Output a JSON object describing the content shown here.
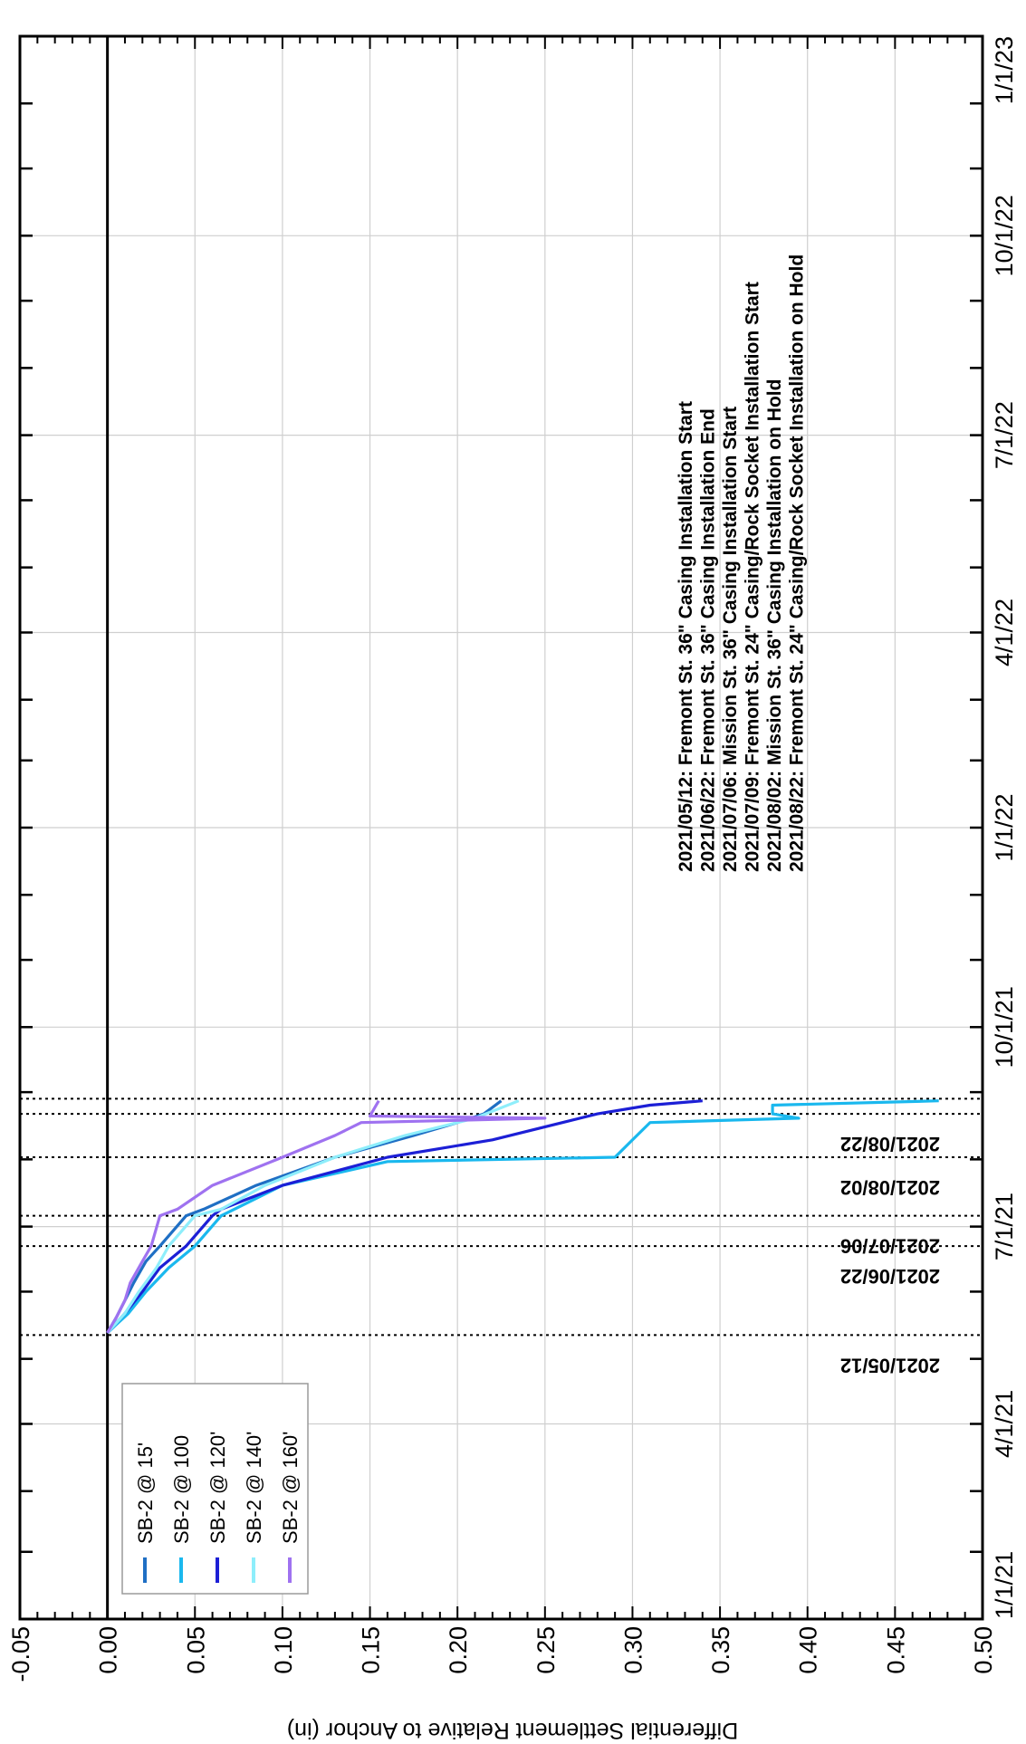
{
  "chart_data": {
    "type": "line",
    "title": "",
    "xlabel": "",
    "ylabel": "Differential Settlement Relative to Anchor (in)",
    "x_axis": {
      "type": "date",
      "range": [
        "2021-01-01",
        "2023-01-01"
      ],
      "tick_labels": [
        "1/1/21",
        "4/1/21",
        "7/1/21",
        "10/1/21",
        "1/1/22",
        "4/1/22",
        "7/1/22",
        "10/1/22",
        "1/1/23"
      ],
      "tick_dates": [
        "2021-01-01",
        "2021-04-01",
        "2021-07-01",
        "2021-10-01",
        "2022-01-01",
        "2022-04-01",
        "2022-07-01",
        "2022-10-01",
        "2023-01-01"
      ]
    },
    "y_axis": {
      "range": [
        -0.05,
        0.5
      ],
      "tick_labels": [
        "-0.05",
        "0.00",
        "0.05",
        "0.10",
        "0.15",
        "0.20",
        "0.25",
        "0.30",
        "0.35",
        "0.40",
        "0.45",
        "0.50"
      ],
      "tick_values": [
        -0.05,
        0.0,
        0.05,
        0.1,
        0.15,
        0.2,
        0.25,
        0.3,
        0.35,
        0.4,
        0.45,
        0.5
      ]
    },
    "grid": true,
    "orientation": "rotated-90-ccw",
    "legend_position": "bottom-left",
    "series": [
      {
        "name": "SB-2 @ 15'",
        "color": "#1f6fc4",
        "points": [
          [
            "2021-05-13",
            0.0
          ],
          [
            "2021-05-20",
            0.005
          ],
          [
            "2021-05-28",
            0.01
          ],
          [
            "2021-06-05",
            0.015
          ],
          [
            "2021-06-15",
            0.022
          ],
          [
            "2021-06-22",
            0.03
          ],
          [
            "2021-07-06",
            0.045
          ],
          [
            "2021-07-09",
            0.055
          ],
          [
            "2021-07-20",
            0.085
          ],
          [
            "2021-08-02",
            0.13
          ],
          [
            "2021-08-12",
            0.175
          ],
          [
            "2021-08-18",
            0.2
          ],
          [
            "2021-08-22",
            0.215
          ],
          [
            "2021-08-28",
            0.225
          ]
        ]
      },
      {
        "name": "SB-2 @ 100",
        "color": "#1ab8ee",
        "points": [
          [
            "2021-05-13",
            0.0
          ],
          [
            "2021-05-22",
            0.012
          ],
          [
            "2021-06-01",
            0.022
          ],
          [
            "2021-06-12",
            0.035
          ],
          [
            "2021-06-22",
            0.05
          ],
          [
            "2021-07-06",
            0.065
          ],
          [
            "2021-07-20",
            0.1
          ],
          [
            "2021-07-31",
            0.16
          ],
          [
            "2021-08-02",
            0.29
          ],
          [
            "2021-08-10",
            0.3
          ],
          [
            "2021-08-18",
            0.31
          ],
          [
            "2021-08-20",
            0.395
          ],
          [
            "2021-08-22",
            0.38
          ],
          [
            "2021-08-26",
            0.38
          ],
          [
            "2021-08-28",
            0.475
          ]
        ]
      },
      {
        "name": "SB-2 @ 120'",
        "color": "#1c1fd6",
        "points": [
          [
            "2021-05-13",
            0.0
          ],
          [
            "2021-05-22",
            0.01
          ],
          [
            "2021-06-01",
            0.02
          ],
          [
            "2021-06-12",
            0.03
          ],
          [
            "2021-06-22",
            0.045
          ],
          [
            "2021-07-06",
            0.06
          ],
          [
            "2021-07-09",
            0.065
          ],
          [
            "2021-07-20",
            0.1
          ],
          [
            "2021-08-02",
            0.16
          ],
          [
            "2021-08-10",
            0.22
          ],
          [
            "2021-08-18",
            0.26
          ],
          [
            "2021-08-22",
            0.28
          ],
          [
            "2021-08-26",
            0.31
          ],
          [
            "2021-08-28",
            0.34
          ]
        ]
      },
      {
        "name": "SB-2 @ 140'",
        "color": "#8eeefb",
        "points": [
          [
            "2021-05-13",
            0.0
          ],
          [
            "2021-05-22",
            0.01
          ],
          [
            "2021-06-01",
            0.018
          ],
          [
            "2021-06-12",
            0.028
          ],
          [
            "2021-06-22",
            0.035
          ],
          [
            "2021-07-06",
            0.05
          ],
          [
            "2021-07-09",
            0.065
          ],
          [
            "2021-07-20",
            0.09
          ],
          [
            "2021-08-02",
            0.13
          ],
          [
            "2021-08-12",
            0.17
          ],
          [
            "2021-08-20",
            0.21
          ],
          [
            "2021-08-28",
            0.235
          ]
        ]
      },
      {
        "name": "SB-2 @ 160'",
        "color": "#9f72f0",
        "points": [
          [
            "2021-05-13",
            0.0
          ],
          [
            "2021-05-20",
            0.005
          ],
          [
            "2021-05-28",
            0.01
          ],
          [
            "2021-06-05",
            0.013
          ],
          [
            "2021-06-15",
            0.02
          ],
          [
            "2021-06-22",
            0.025
          ],
          [
            "2021-07-06",
            0.03
          ],
          [
            "2021-07-09",
            0.04
          ],
          [
            "2021-07-20",
            0.06
          ],
          [
            "2021-08-02",
            0.1
          ],
          [
            "2021-08-12",
            0.13
          ],
          [
            "2021-08-18",
            0.145
          ],
          [
            "2021-08-20",
            0.25
          ],
          [
            "2021-08-21",
            0.15
          ],
          [
            "2021-08-28",
            0.155
          ]
        ]
      }
    ],
    "event_lines": [
      {
        "date": "2021-05-12",
        "label": "2021/05/12"
      },
      {
        "date": "2021-06-22",
        "label": "2021/06/22"
      },
      {
        "date": "2021-07-06",
        "label": "2021/07/06"
      },
      {
        "date": "2021-08-02",
        "label": "2021/08/02"
      },
      {
        "date": "2021-08-22",
        "label": "2021/08/22"
      },
      {
        "date": "2021-08-29",
        "label": ""
      }
    ],
    "annotations": [
      "2021/05/12:  Fremont St. 36\" Casing Installation Start",
      "2021/06/22:  Fremont St. 36\" Casing Installation End",
      "2021/07/06:  Mission St.  36\" Casing Installation Start",
      "2021/07/09:  Fremont St. 24\" Casing/Rock Socket Installation Start",
      "2021/08/02:  Mission St.  36\" Casing Installation on Hold",
      "2021/08/22:  Fremont St. 24\" Casing/Rock Socket Installation on Hold"
    ]
  }
}
